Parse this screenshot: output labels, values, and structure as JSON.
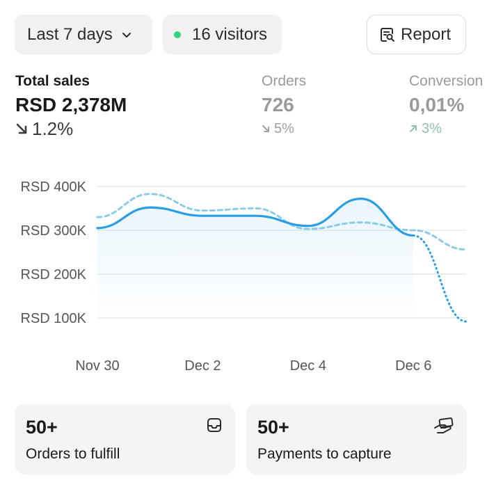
{
  "header": {
    "date_range": "Last 7 days",
    "visitors": "16 visitors",
    "report_label": "Report"
  },
  "metrics": {
    "total_sales": {
      "label": "Total sales",
      "value": "RSD 2,378M",
      "delta": "1.2%"
    },
    "orders": {
      "label": "Orders",
      "value": "726",
      "delta": "5%"
    },
    "conversion": {
      "label": "Conversion",
      "value": "0,01%",
      "delta": "3%"
    }
  },
  "colors": {
    "accent": "#2a9ee3",
    "comparison": "#8ccbe9",
    "positive": "#8cc7a9",
    "visitor_dot": "#2fd480"
  },
  "chart_data": {
    "type": "line",
    "x_ticks": [
      "Nov 30",
      "Dec 2",
      "Dec 4",
      "Dec 6"
    ],
    "y_ticks": [
      "RSD 100K",
      "RSD 200K",
      "RSD 300K",
      "RSD 400K"
    ],
    "ylim": [
      100000,
      400000
    ],
    "x": [
      0,
      1,
      2,
      3,
      4,
      5,
      6,
      7
    ],
    "series": [
      {
        "values": [
          305000,
          352000,
          333000,
          333000,
          310000,
          372000,
          288000,
          null
        ]
      },
      {
        "values": [
          null,
          null,
          null,
          null,
          null,
          null,
          288000,
          92000
        ]
      },
      {
        "values": [
          330000,
          383000,
          345000,
          350000,
          303000,
          318000,
          300000,
          256000
        ]
      }
    ],
    "grid": true
  },
  "cards": [
    {
      "count": "50+",
      "label": "Orders to fulfill",
      "icon": "inbox-icon"
    },
    {
      "count": "50+",
      "label": "Payments to capture",
      "icon": "cash-hand-icon"
    }
  ]
}
